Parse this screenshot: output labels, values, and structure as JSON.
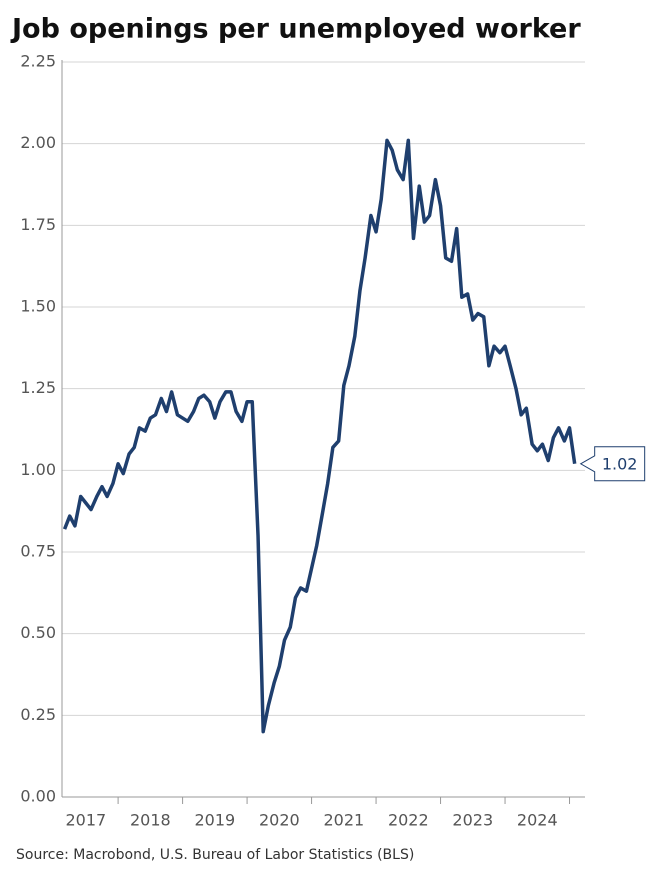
{
  "chart_data": {
    "type": "line",
    "title": "Job openings per unemployed worker",
    "source": "Source: Macrobond, U.S. Bureau of Labor Statistics (BLS)",
    "last_value_label": "1.02",
    "x": [
      2017.17,
      2017.25,
      2017.33,
      2017.42,
      2017.5,
      2017.58,
      2017.67,
      2017.75,
      2017.83,
      2017.92,
      2018,
      2018.08,
      2018.17,
      2018.25,
      2018.33,
      2018.42,
      2018.5,
      2018.58,
      2018.67,
      2018.75,
      2018.83,
      2018.92,
      2019,
      2019.08,
      2019.17,
      2019.25,
      2019.33,
      2019.42,
      2019.5,
      2019.58,
      2019.67,
      2019.75,
      2019.83,
      2019.92,
      2020,
      2020.08,
      2020.17,
      2020.25,
      2020.33,
      2020.42,
      2020.5,
      2020.58,
      2020.67,
      2020.75,
      2020.83,
      2020.92,
      2021,
      2021.08,
      2021.17,
      2021.25,
      2021.33,
      2021.42,
      2021.5,
      2021.58,
      2021.67,
      2021.75,
      2021.83,
      2021.92,
      2022,
      2022.08,
      2022.17,
      2022.25,
      2022.33,
      2022.42,
      2022.5,
      2022.58,
      2022.67,
      2022.75,
      2022.83,
      2022.92,
      2023,
      2023.08,
      2023.17,
      2023.25,
      2023.33,
      2023.42,
      2023.5,
      2023.58,
      2023.67,
      2023.75,
      2023.83,
      2023.92,
      2024,
      2024.08,
      2024.17,
      2024.25,
      2024.33,
      2024.42,
      2024.5,
      2024.58,
      2024.67,
      2024.75,
      2024.83,
      2024.92,
      2025,
      2025.08
    ],
    "series": [
      {
        "name": "Job openings per unemployed worker",
        "color": "#1f3f6e",
        "values": [
          0.82,
          0.86,
          0.83,
          0.92,
          0.9,
          0.88,
          0.92,
          0.95,
          0.92,
          0.96,
          1.02,
          0.99,
          1.05,
          1.07,
          1.13,
          1.12,
          1.16,
          1.17,
          1.22,
          1.18,
          1.24,
          1.17,
          1.16,
          1.15,
          1.18,
          1.22,
          1.23,
          1.21,
          1.16,
          1.21,
          1.24,
          1.24,
          1.18,
          1.15,
          1.21,
          1.21,
          0.8,
          0.2,
          0.28,
          0.35,
          0.4,
          0.48,
          0.52,
          0.61,
          0.64,
          0.63,
          0.7,
          0.77,
          0.87,
          0.96,
          1.07,
          1.09,
          1.26,
          1.32,
          1.41,
          1.55,
          1.65,
          1.78,
          1.73,
          1.83,
          2.01,
          1.98,
          1.92,
          1.89,
          2.01,
          1.71,
          1.87,
          1.76,
          1.78,
          1.89,
          1.81,
          1.65,
          1.64,
          1.74,
          1.53,
          1.54,
          1.46,
          1.48,
          1.47,
          1.32,
          1.38,
          1.36,
          1.38,
          1.32,
          1.25,
          1.17,
          1.19,
          1.08,
          1.06,
          1.08,
          1.03,
          1.1,
          1.13,
          1.09,
          1.13,
          1.02
        ]
      }
    ],
    "xlim": [
      2017.13,
      2025.24
    ],
    "xticks": [
      {
        "value": 2017.5,
        "label": "2017"
      },
      {
        "value": 2018.5,
        "label": "2018"
      },
      {
        "value": 2019.5,
        "label": "2019"
      },
      {
        "value": 2020.5,
        "label": "2020"
      },
      {
        "value": 2021.5,
        "label": "2021"
      },
      {
        "value": 2022.5,
        "label": "2022"
      },
      {
        "value": 2023.5,
        "label": "2023"
      },
      {
        "value": 2024.5,
        "label": "2024"
      }
    ],
    "ylim": [
      0,
      2.25
    ],
    "yticks": [
      {
        "value": 0,
        "label": "0.00"
      },
      0.25,
      {
        "value": 0.5,
        "label": "0.50"
      },
      0.75,
      {
        "value": 1,
        "label": "1.00"
      },
      1.25,
      {
        "value": 1.5,
        "label": "1.50"
      },
      1.75,
      {
        "value": 2,
        "label": "2.00"
      },
      2.25
    ],
    "grid": true
  }
}
